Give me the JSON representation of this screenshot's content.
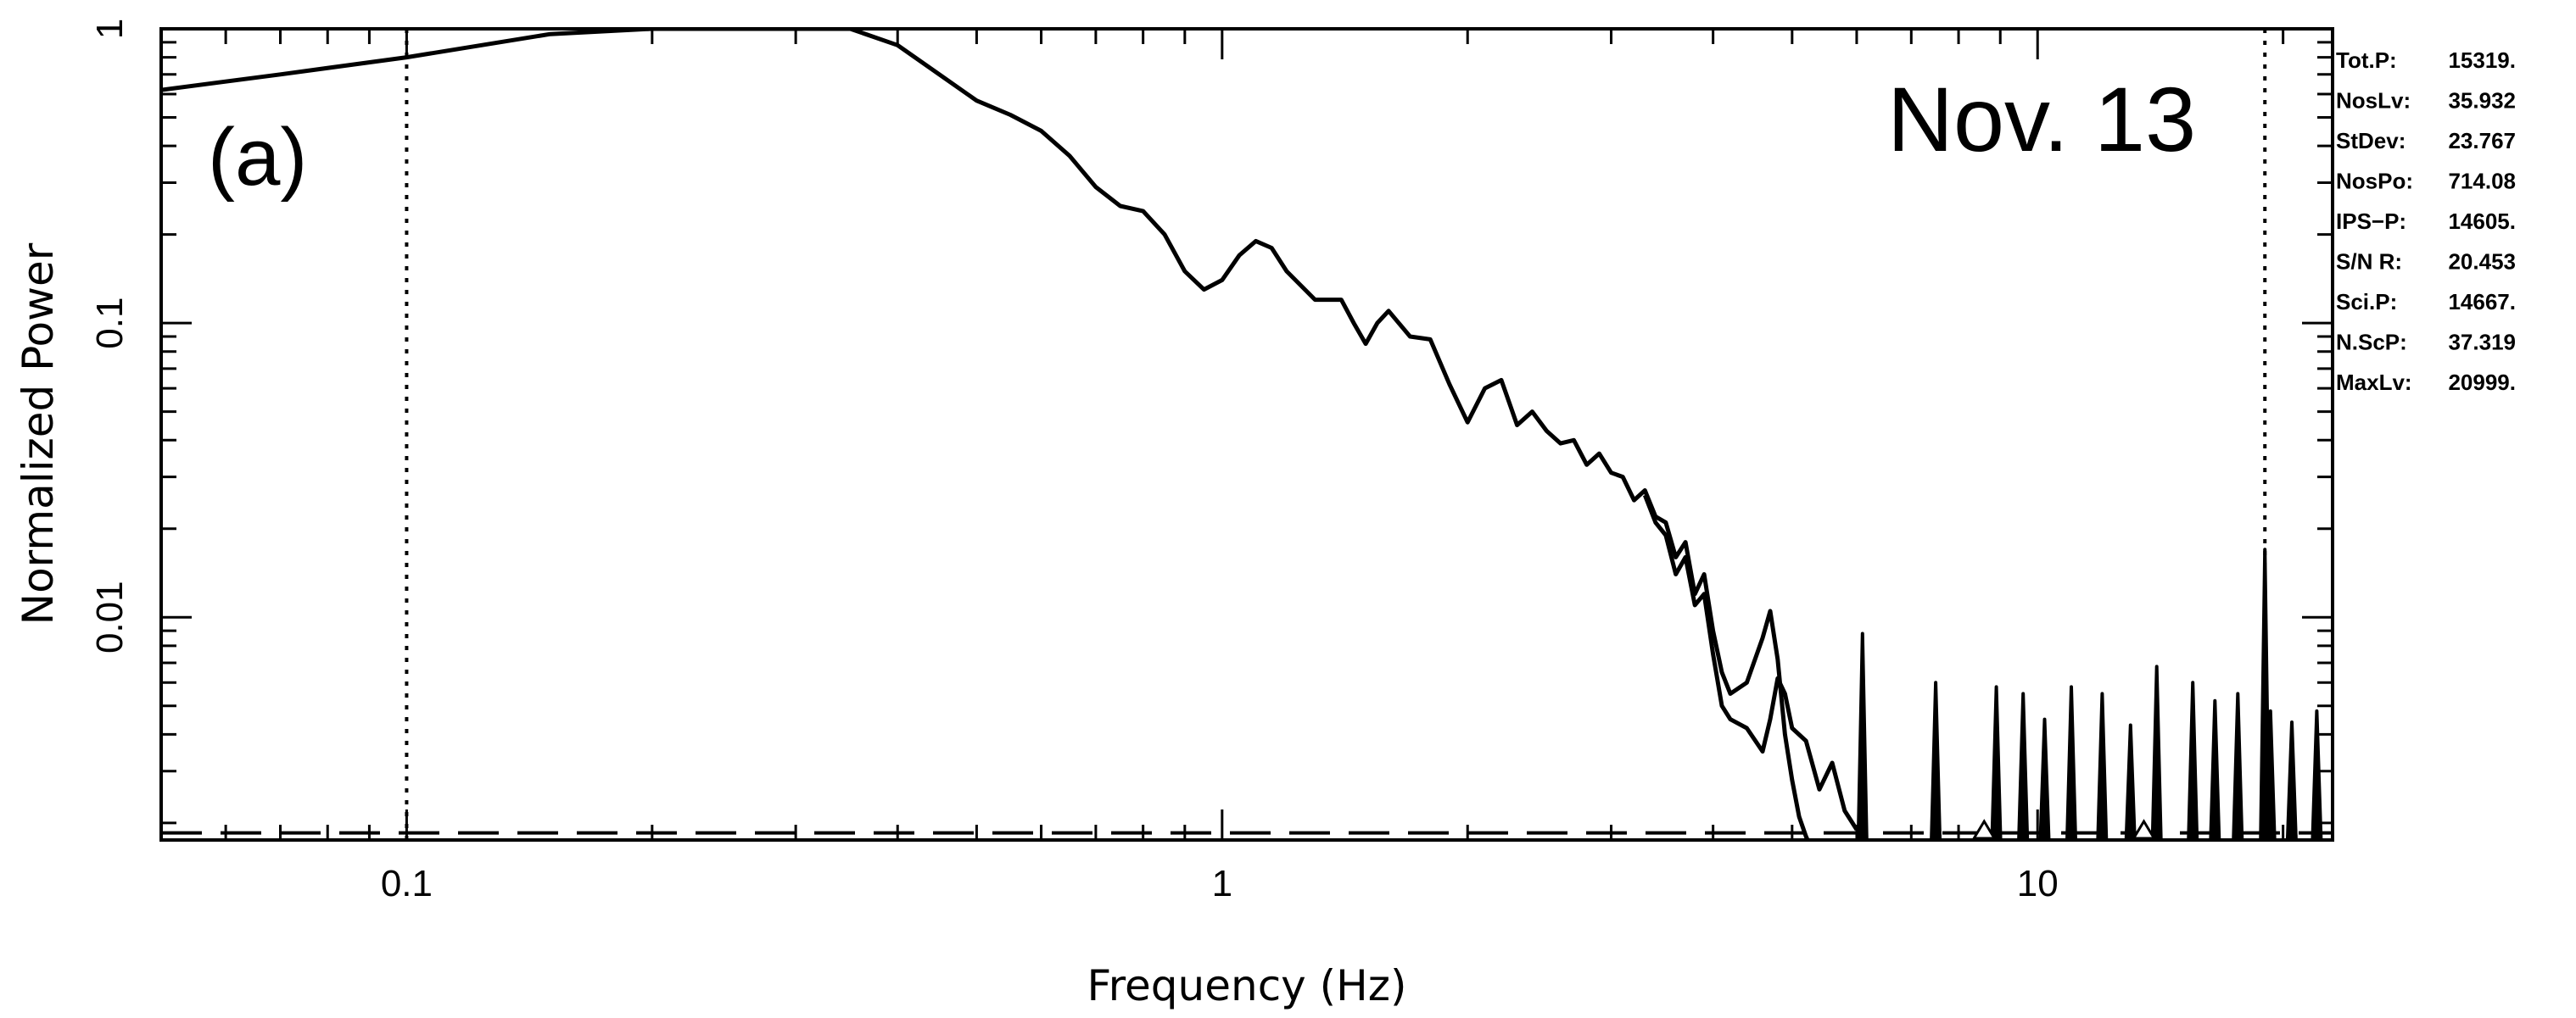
{
  "chart_data": {
    "type": "line",
    "title": "Nov. 13",
    "panel_label": "(a)",
    "xlabel": "Frequency (Hz)",
    "ylabel": "Normalized Power",
    "x_scale": "log",
    "y_scale": "log",
    "xlim": [
      0.05,
      23
    ],
    "ylim": [
      0.00175,
      1
    ],
    "x_ticks": [
      {
        "value": 0.1,
        "label": "0.1"
      },
      {
        "value": 1,
        "label": "1"
      },
      {
        "value": 10,
        "label": "10"
      }
    ],
    "y_ticks": [
      {
        "value": 1,
        "label": "1"
      },
      {
        "value": 0.1,
        "label": "0.1"
      },
      {
        "value": 0.01,
        "label": "0.01"
      }
    ],
    "vertical_lines": [
      0.1,
      19
    ],
    "noise_level": 0.00185,
    "triangle_markers": [
      8.6,
      13.5
    ],
    "series": [
      {
        "x": [
          0.05,
          0.07,
          0.1,
          0.15,
          0.2,
          0.25,
          0.3,
          0.35,
          0.4,
          0.45,
          0.5,
          0.55,
          0.6,
          0.65,
          0.7,
          0.75,
          0.8,
          0.85,
          0.9,
          0.95,
          1.0,
          1.05,
          1.1,
          1.15,
          1.2,
          1.3,
          1.4,
          1.45,
          1.5,
          1.55,
          1.6,
          1.7,
          1.8,
          1.9,
          2.0,
          2.1,
          2.2,
          2.3,
          2.4,
          2.5,
          2.6,
          2.7,
          2.8,
          2.9,
          3.0,
          3.1,
          3.2,
          3.3,
          3.4,
          3.5,
          3.6,
          3.7,
          3.8,
          3.9,
          4.0,
          4.1,
          4.2,
          4.4,
          4.6,
          4.7,
          4.8,
          4.9,
          5.0,
          5.1,
          5.2,
          5.3
        ],
        "values": [
          0.62,
          0.7,
          0.8,
          0.96,
          1.0,
          1.0,
          1.0,
          1.0,
          0.88,
          0.7,
          0.57,
          0.51,
          0.45,
          0.37,
          0.29,
          0.25,
          0.24,
          0.2,
          0.15,
          0.13,
          0.14,
          0.17,
          0.19,
          0.18,
          0.15,
          0.12,
          0.12,
          0.1,
          0.085,
          0.1,
          0.11,
          0.09,
          0.088,
          0.062,
          0.046,
          0.06,
          0.064,
          0.045,
          0.05,
          0.043,
          0.039,
          0.04,
          0.033,
          0.036,
          0.031,
          0.03,
          0.025,
          0.027,
          0.022,
          0.021,
          0.016,
          0.018,
          0.012,
          0.014,
          0.009,
          0.0065,
          0.0055,
          0.006,
          0.0085,
          0.0105,
          0.0072,
          0.004,
          0.0028,
          0.0021,
          0.0018,
          0.0016
        ]
      },
      {
        "x": [
          3.3,
          3.4,
          3.5,
          3.6,
          3.7,
          3.8,
          3.9,
          4.0,
          4.1,
          4.2,
          4.4,
          4.6,
          4.7,
          4.8,
          4.9,
          5.0,
          5.2,
          5.4,
          5.6,
          5.8,
          6.0
        ],
        "values": [
          0.026,
          0.021,
          0.019,
          0.014,
          0.016,
          0.011,
          0.012,
          0.0075,
          0.005,
          0.0045,
          0.0042,
          0.0035,
          0.0045,
          0.0062,
          0.0055,
          0.0042,
          0.0038,
          0.0026,
          0.0032,
          0.0022,
          0.0019
        ]
      }
    ],
    "spikes": [
      {
        "x": 6.1,
        "value": 0.0088
      },
      {
        "x": 7.5,
        "value": 0.006
      },
      {
        "x": 8.9,
        "value": 0.0058
      },
      {
        "x": 9.6,
        "value": 0.0055
      },
      {
        "x": 10.2,
        "value": 0.0045
      },
      {
        "x": 11.0,
        "value": 0.0058
      },
      {
        "x": 12.0,
        "value": 0.0055
      },
      {
        "x": 13.0,
        "value": 0.0043
      },
      {
        "x": 14.0,
        "value": 0.0068
      },
      {
        "x": 15.5,
        "value": 0.006
      },
      {
        "x": 16.5,
        "value": 0.0052
      },
      {
        "x": 17.6,
        "value": 0.0055
      },
      {
        "x": 19.0,
        "value": 0.017
      },
      {
        "x": 19.3,
        "value": 0.0048
      },
      {
        "x": 20.5,
        "value": 0.0044
      },
      {
        "x": 22.0,
        "value": 0.0048
      }
    ]
  },
  "stats": [
    {
      "label": "Tot.P:",
      "value": "15319."
    },
    {
      "label": "NosLv:",
      "value": "35.932"
    },
    {
      "label": "StDev:",
      "value": "23.767"
    },
    {
      "label": "NosPo:",
      "value": "714.08"
    },
    {
      "label": "IPS−P:",
      "value": "14605."
    },
    {
      "label": "S/N R:",
      "value": "20.453"
    },
    {
      "label": "Sci.P:",
      "value": "14667."
    },
    {
      "label": "N.ScP:",
      "value": "37.319"
    },
    {
      "label": "MaxLv:",
      "value": "20999."
    }
  ]
}
